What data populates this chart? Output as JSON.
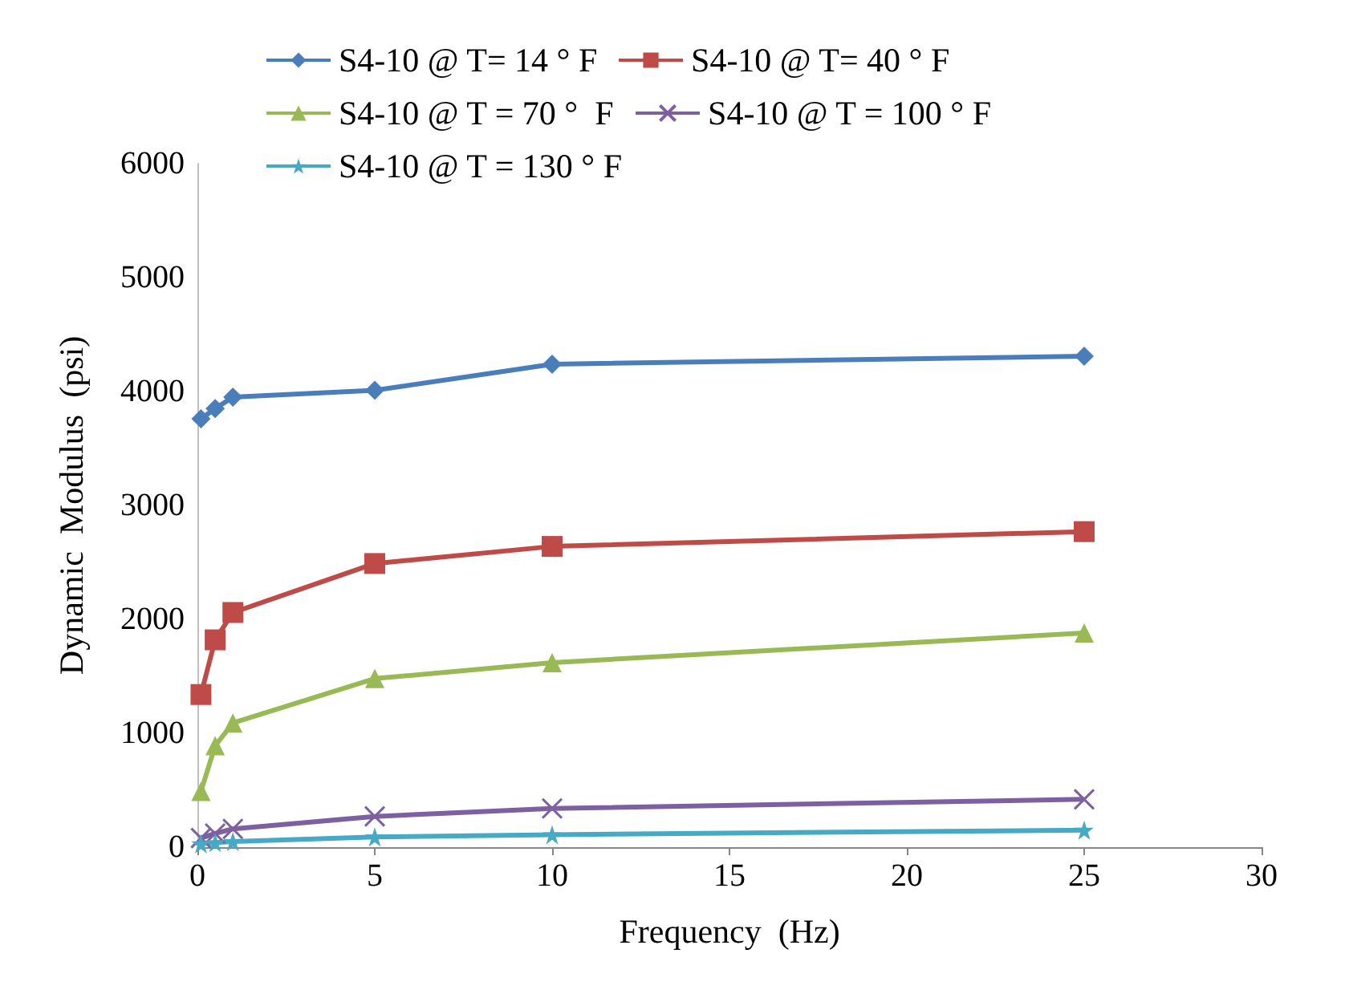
{
  "chart_data": {
    "type": "line",
    "xlabel": "Frequency  (Hz)",
    "ylabel": "Dynamic  Modulus  (psi)",
    "xlim": [
      0,
      30
    ],
    "xticks": [
      0,
      5,
      10,
      15,
      20,
      25,
      30
    ],
    "ylim": [
      0,
      6000
    ],
    "yticks": [
      0,
      1000,
      2000,
      3000,
      4000,
      5000,
      6000
    ],
    "grid": false,
    "legend": "top",
    "x": [
      0.1,
      0.5,
      1,
      5,
      10,
      25
    ],
    "series": [
      {
        "name": "S4-10 @ T= 14 ° F",
        "color": "#4a7ebb",
        "marker": "diamond",
        "values": [
          3760,
          3850,
          3950,
          4010,
          4240,
          4310
        ]
      },
      {
        "name": "S4-10 @ T= 40 ° F",
        "color": "#be4b48",
        "marker": "square",
        "values": [
          1340,
          1820,
          2060,
          2490,
          2640,
          2770
        ]
      },
      {
        "name": "S4-10 @ T = 70 °  F",
        "color": "#98b954",
        "marker": "triangle",
        "values": [
          490,
          890,
          1090,
          1480,
          1620,
          1880
        ]
      },
      {
        "name": "S4-10 @ T = 100 ° F",
        "color": "#7d60a0",
        "marker": "cross",
        "values": [
          80,
          120,
          160,
          270,
          340,
          420
        ]
      },
      {
        "name": "S4-10 @ T = 130 ° F",
        "color": "#46aac5",
        "marker": "star",
        "values": [
          30,
          40,
          50,
          90,
          110,
          150
        ]
      }
    ]
  }
}
